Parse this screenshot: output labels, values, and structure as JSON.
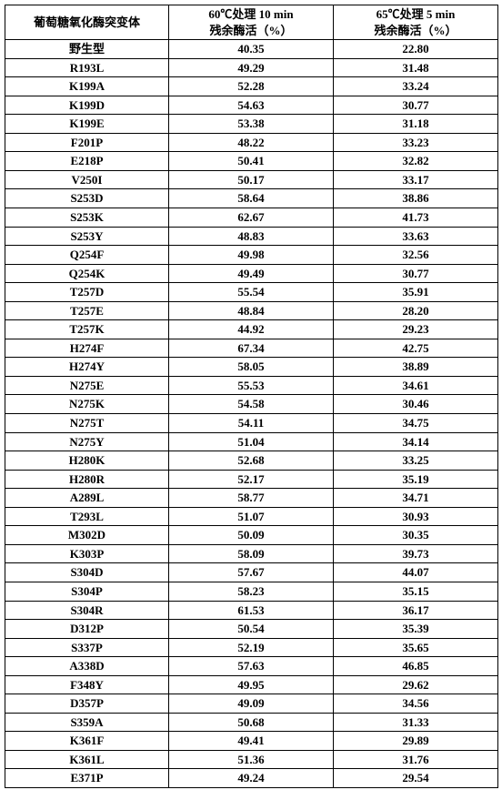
{
  "table": {
    "headers": {
      "col1": "葡萄糖氧化酶突变体",
      "col2_line1": "60℃处理 10 min",
      "col2_line2": "残余酶活（%）",
      "col3_line1": "65℃处理 5 min",
      "col3_line2": "残余酶活（%）"
    },
    "rows": [
      {
        "mutant": "野生型",
        "v60": "40.35",
        "v65": "22.80"
      },
      {
        "mutant": "R193L",
        "v60": "49.29",
        "v65": "31.48"
      },
      {
        "mutant": "K199A",
        "v60": "52.28",
        "v65": "33.24"
      },
      {
        "mutant": "K199D",
        "v60": "54.63",
        "v65": "30.77"
      },
      {
        "mutant": "K199E",
        "v60": "53.38",
        "v65": "31.18"
      },
      {
        "mutant": "F201P",
        "v60": "48.22",
        "v65": "33.23"
      },
      {
        "mutant": "E218P",
        "v60": "50.41",
        "v65": "32.82"
      },
      {
        "mutant": "V250I",
        "v60": "50.17",
        "v65": "33.17"
      },
      {
        "mutant": "S253D",
        "v60": "58.64",
        "v65": "38.86"
      },
      {
        "mutant": "S253K",
        "v60": "62.67",
        "v65": "41.73"
      },
      {
        "mutant": "S253Y",
        "v60": "48.83",
        "v65": "33.63"
      },
      {
        "mutant": "Q254F",
        "v60": "49.98",
        "v65": "32.56"
      },
      {
        "mutant": "Q254K",
        "v60": "49.49",
        "v65": "30.77"
      },
      {
        "mutant": "T257D",
        "v60": "55.54",
        "v65": "35.91"
      },
      {
        "mutant": "T257E",
        "v60": "48.84",
        "v65": "28.20"
      },
      {
        "mutant": "T257K",
        "v60": "44.92",
        "v65": "29.23"
      },
      {
        "mutant": "H274F",
        "v60": "67.34",
        "v65": "42.75"
      },
      {
        "mutant": "H274Y",
        "v60": "58.05",
        "v65": "38.89"
      },
      {
        "mutant": "N275E",
        "v60": "55.53",
        "v65": "34.61"
      },
      {
        "mutant": "N275K",
        "v60": "54.58",
        "v65": "30.46"
      },
      {
        "mutant": "N275T",
        "v60": "54.11",
        "v65": "34.75"
      },
      {
        "mutant": "N275Y",
        "v60": "51.04",
        "v65": "34.14"
      },
      {
        "mutant": "H280K",
        "v60": "52.68",
        "v65": "33.25"
      },
      {
        "mutant": "H280R",
        "v60": "52.17",
        "v65": "35.19"
      },
      {
        "mutant": "A289L",
        "v60": "58.77",
        "v65": "34.71"
      },
      {
        "mutant": "T293L",
        "v60": "51.07",
        "v65": "30.93"
      },
      {
        "mutant": "M302D",
        "v60": "50.09",
        "v65": "30.35"
      },
      {
        "mutant": "K303P",
        "v60": "58.09",
        "v65": "39.73"
      },
      {
        "mutant": "S304D",
        "v60": "57.67",
        "v65": "44.07"
      },
      {
        "mutant": "S304P",
        "v60": "58.23",
        "v65": "35.15"
      },
      {
        "mutant": "S304R",
        "v60": "61.53",
        "v65": "36.17"
      },
      {
        "mutant": "D312P",
        "v60": "50.54",
        "v65": "35.39"
      },
      {
        "mutant": "S337P",
        "v60": "52.19",
        "v65": "35.65"
      },
      {
        "mutant": "A338D",
        "v60": "57.63",
        "v65": "46.85"
      },
      {
        "mutant": "F348Y",
        "v60": "49.95",
        "v65": "29.62"
      },
      {
        "mutant": "D357P",
        "v60": "49.09",
        "v65": "34.56"
      },
      {
        "mutant": "S359A",
        "v60": "50.68",
        "v65": "31.33"
      },
      {
        "mutant": "K361F",
        "v60": "49.41",
        "v65": "29.89"
      },
      {
        "mutant": "K361L",
        "v60": "51.36",
        "v65": "31.76"
      },
      {
        "mutant": "E371P",
        "v60": "49.24",
        "v65": "29.54"
      }
    ]
  }
}
